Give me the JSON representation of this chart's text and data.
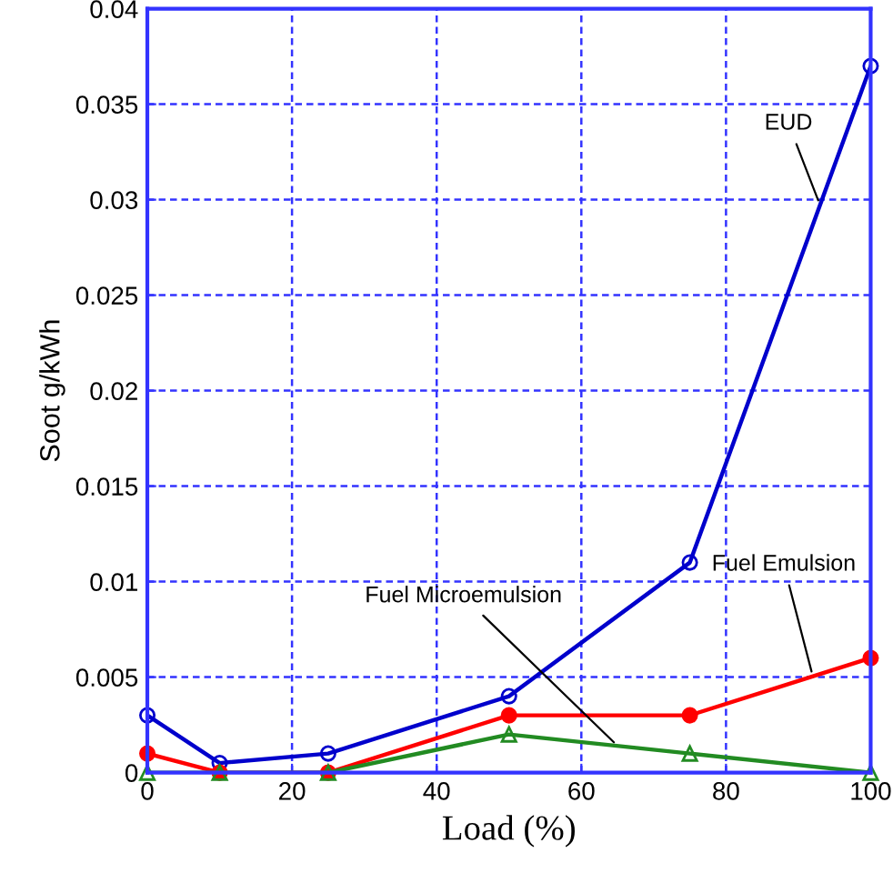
{
  "chart_data": {
    "type": "line",
    "xlabel": "Load (%)",
    "ylabel": "Soot g/kWh",
    "x": [
      0,
      10,
      25,
      50,
      75,
      100
    ],
    "series": [
      {
        "name": "EUD",
        "color": "#0000cc",
        "marker": "circle",
        "values": [
          0.003,
          0.0005,
          0.001,
          0.004,
          0.011,
          0.037
        ]
      },
      {
        "name": "Fuel Emulsion",
        "color": "#ff0000",
        "marker": "circle",
        "values": [
          0.001,
          0,
          0,
          0.003,
          0.003,
          0.006
        ]
      },
      {
        "name": "Fuel Microemulsion",
        "color": "#228b22",
        "marker": "triangle",
        "values": [
          0,
          0,
          0,
          0.002,
          0.001,
          0
        ]
      }
    ],
    "xlim": [
      0,
      100
    ],
    "xticks": [
      0,
      20,
      40,
      60,
      80,
      100
    ],
    "ylim": [
      0,
      0.04
    ],
    "yticks": [
      0,
      0.005,
      0.01,
      0.015,
      0.02,
      0.025,
      0.03,
      0.035,
      0.04
    ],
    "grid": true,
    "legend": false,
    "line_style": "solid"
  }
}
